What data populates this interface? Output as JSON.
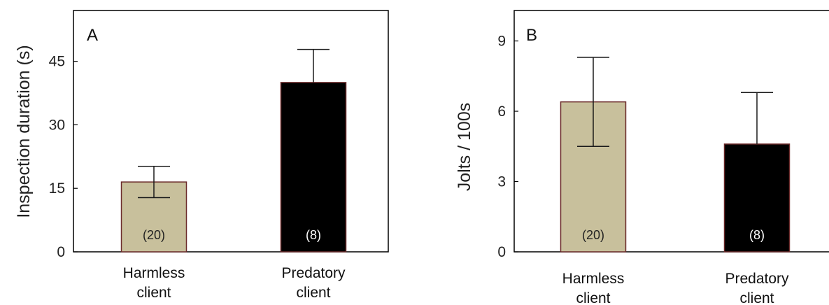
{
  "chart_data": [
    {
      "type": "bar",
      "panel_label": "A",
      "ylabel": "Inspection duration (s)",
      "categories": [
        [
          "Harmless",
          "client"
        ],
        [
          "Predatory",
          "client"
        ]
      ],
      "values": [
        16.5,
        40.0
      ],
      "error_upper": [
        20.2,
        47.8
      ],
      "error_lower": [
        12.8,
        null
      ],
      "bar_labels": [
        "(20)",
        "(8)"
      ],
      "bar_colors": [
        "#c8c09c",
        "#000000"
      ],
      "bar_label_colors": [
        "#222222",
        "#ffffff"
      ],
      "yticks": [
        "0",
        "15",
        "30",
        "45"
      ],
      "ylim": [
        0,
        57
      ],
      "grid": false
    },
    {
      "type": "bar",
      "panel_label": "B",
      "ylabel": "Jolts / 100s",
      "categories": [
        [
          "Harmless",
          "client"
        ],
        [
          "Predatory",
          "client"
        ]
      ],
      "values": [
        6.4,
        4.6
      ],
      "error_upper": [
        8.3,
        6.8
      ],
      "error_lower": [
        4.5,
        null
      ],
      "bar_labels": [
        "(20)",
        "(8)"
      ],
      "bar_colors": [
        "#c8c09c",
        "#000000"
      ],
      "bar_label_colors": [
        "#222222",
        "#ffffff"
      ],
      "yticks": [
        "0",
        "3",
        "6",
        "9"
      ],
      "ylim": [
        0,
        10.3
      ],
      "grid": false
    }
  ]
}
